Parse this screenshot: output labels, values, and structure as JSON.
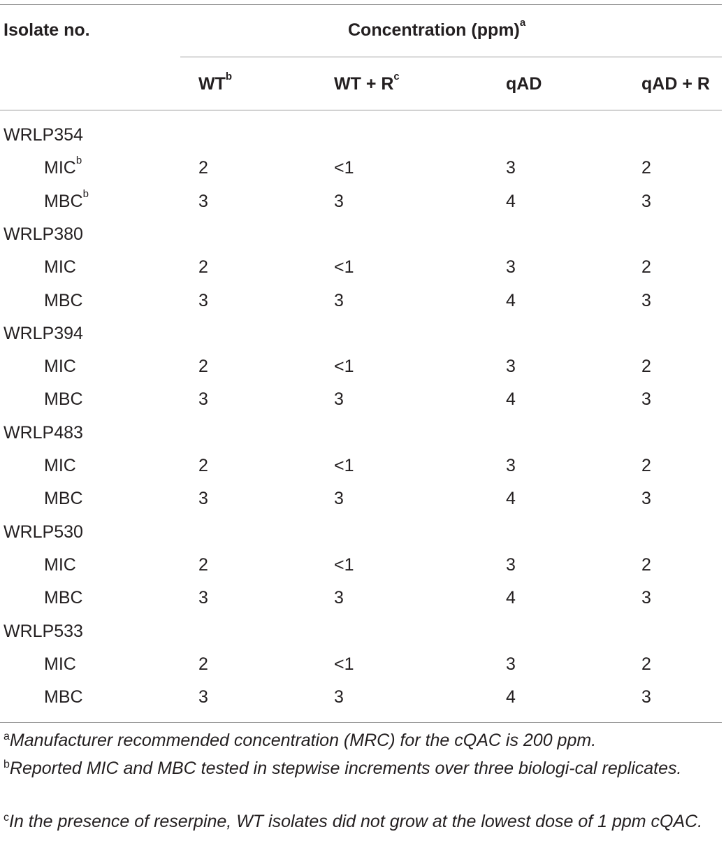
{
  "header": {
    "isolate_label": "Isolate no.",
    "concentration_label": "Concentration (ppm)",
    "concentration_mark": "a",
    "columns": [
      {
        "label": "WT",
        "mark": "b"
      },
      {
        "label": "WT + R",
        "mark": "c"
      },
      {
        "label": "qAD",
        "mark": ""
      },
      {
        "label": "qAD + R",
        "mark": ""
      }
    ]
  },
  "groups": [
    {
      "isolate": "WRLP354",
      "rows": [
        {
          "label": "MIC",
          "mark": "b",
          "values": [
            "2",
            "<1",
            "3",
            "2"
          ]
        },
        {
          "label": "MBC",
          "mark": "b",
          "values": [
            "3",
            "3",
            "4",
            "3"
          ]
        }
      ]
    },
    {
      "isolate": "WRLP380",
      "rows": [
        {
          "label": "MIC",
          "mark": "",
          "values": [
            "2",
            "<1",
            "3",
            "2"
          ]
        },
        {
          "label": "MBC",
          "mark": "",
          "values": [
            "3",
            "3",
            "4",
            "3"
          ]
        }
      ]
    },
    {
      "isolate": "WRLP394",
      "rows": [
        {
          "label": "MIC",
          "mark": "",
          "values": [
            "2",
            "<1",
            "3",
            "2"
          ]
        },
        {
          "label": "MBC",
          "mark": "",
          "values": [
            "3",
            "3",
            "4",
            "3"
          ]
        }
      ]
    },
    {
      "isolate": "WRLP483",
      "rows": [
        {
          "label": "MIC",
          "mark": "",
          "values": [
            "2",
            "<1",
            "3",
            "2"
          ]
        },
        {
          "label": "MBC",
          "mark": "",
          "values": [
            "3",
            "3",
            "4",
            "3"
          ]
        }
      ]
    },
    {
      "isolate": "WRLP530",
      "rows": [
        {
          "label": "MIC",
          "mark": "",
          "values": [
            "2",
            "<1",
            "3",
            "2"
          ]
        },
        {
          "label": "MBC",
          "mark": "",
          "values": [
            "3",
            "3",
            "4",
            "3"
          ]
        }
      ]
    },
    {
      "isolate": "WRLP533",
      "rows": [
        {
          "label": "MIC",
          "mark": "",
          "values": [
            "2",
            "<1",
            "3",
            "2"
          ]
        },
        {
          "label": "MBC",
          "mark": "",
          "values": [
            "3",
            "3",
            "4",
            "3"
          ]
        }
      ]
    }
  ],
  "footnotes": [
    {
      "mark": "a",
      "text": "Manufacturer recommended concentration (MRC) for the cQAC is 200 ppm."
    },
    {
      "mark": "b",
      "text": "Reported MIC and MBC tested in stepwise increments over three biologi-cal replicates."
    },
    {
      "mark": "c",
      "text": "In the presence of reserpine, WT isolates did not grow at the lowest dose of 1 ppm cQAC."
    }
  ]
}
